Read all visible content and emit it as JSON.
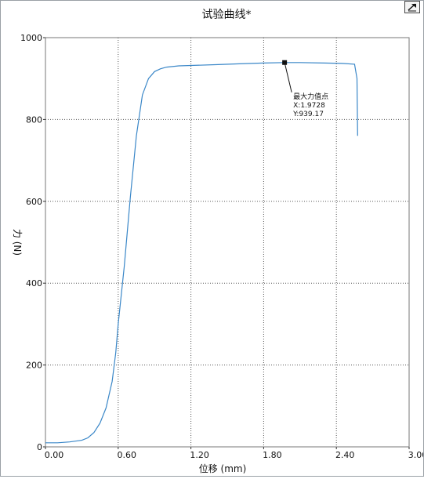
{
  "chart_data": {
    "type": "line",
    "title": "试验曲线*",
    "xlabel": "位移 (mm)",
    "ylabel": "力 (N)",
    "xlim": [
      0.0,
      3.0
    ],
    "ylim": [
      0,
      1000
    ],
    "x_ticks": [
      "0.00",
      "0.60",
      "1.20",
      "1.80",
      "2.40",
      "3.00"
    ],
    "x_tick_values": [
      0.0,
      0.6,
      1.2,
      1.8,
      2.4,
      3.0
    ],
    "y_ticks": [
      "0",
      "200",
      "400",
      "600",
      "800",
      "1000"
    ],
    "y_tick_values": [
      0,
      200,
      400,
      600,
      800,
      1000
    ],
    "grid": true,
    "series": [
      {
        "x": [
          0.0,
          0.1,
          0.2,
          0.3,
          0.35,
          0.4,
          0.45,
          0.5,
          0.55,
          0.58,
          0.6,
          0.65,
          0.7,
          0.75,
          0.8,
          0.85,
          0.9,
          0.95,
          1.0,
          1.1,
          1.2,
          1.4,
          1.6,
          1.8,
          1.9728,
          2.1,
          2.3,
          2.45,
          2.55,
          2.57,
          2.575
        ],
        "y": [
          10,
          10,
          12,
          16,
          22,
          35,
          58,
          95,
          160,
          230,
          300,
          440,
          610,
          760,
          860,
          900,
          917,
          924,
          928,
          931,
          932,
          934,
          936,
          938,
          939.17,
          939,
          938,
          937,
          935,
          900,
          760
        ]
      }
    ],
    "annotation": {
      "label": "最大力值点",
      "x_text": "X:1.9728",
      "y_text": "Y:939.17",
      "x": 1.9728,
      "y": 939.17
    }
  }
}
